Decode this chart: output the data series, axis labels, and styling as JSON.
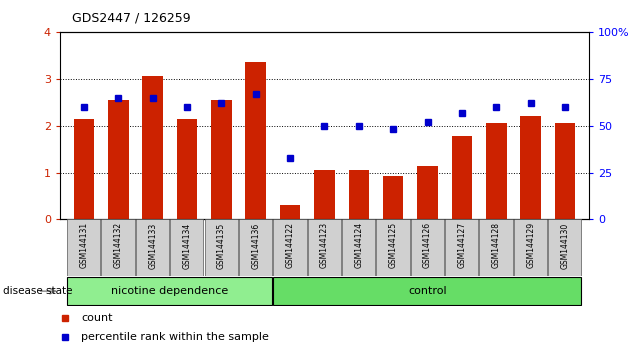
{
  "title": "GDS2447 / 126259",
  "samples": [
    "GSM144131",
    "GSM144132",
    "GSM144133",
    "GSM144134",
    "GSM144135",
    "GSM144136",
    "GSM144122",
    "GSM144123",
    "GSM144124",
    "GSM144125",
    "GSM144126",
    "GSM144127",
    "GSM144128",
    "GSM144129",
    "GSM144130"
  ],
  "counts": [
    2.15,
    2.55,
    3.05,
    2.15,
    2.55,
    3.35,
    0.3,
    1.05,
    1.05,
    0.92,
    1.15,
    1.78,
    2.05,
    2.2,
    2.05
  ],
  "percentiles": [
    60,
    65,
    65,
    60,
    62,
    67,
    33,
    50,
    50,
    48,
    52,
    57,
    60,
    62,
    60
  ],
  "groups": [
    "nicotine dependence",
    "nicotine dependence",
    "nicotine dependence",
    "nicotine dependence",
    "nicotine dependence",
    "nicotine dependence",
    "control",
    "control",
    "control",
    "control",
    "control",
    "control",
    "control",
    "control",
    "control"
  ],
  "group_colors": {
    "nicotine dependence": "#90EE90",
    "control": "#66DD66"
  },
  "bar_color": "#CC2200",
  "dot_color": "#0000CC",
  "ytick_color": "#CC2200",
  "ylim_left": [
    0,
    4
  ],
  "ylim_right": [
    0,
    100
  ],
  "yticks_left": [
    0,
    1,
    2,
    3,
    4
  ],
  "ytick_labels_left": [
    "0",
    "1",
    "2",
    "3",
    "4"
  ],
  "yticks_right": [
    0,
    25,
    50,
    75,
    100
  ],
  "ytick_labels_right": [
    "0",
    "25",
    "50",
    "75",
    "100%"
  ],
  "legend_items": [
    {
      "color": "#CC2200",
      "label": "count"
    },
    {
      "color": "#0000CC",
      "label": "percentile rank within the sample"
    }
  ]
}
